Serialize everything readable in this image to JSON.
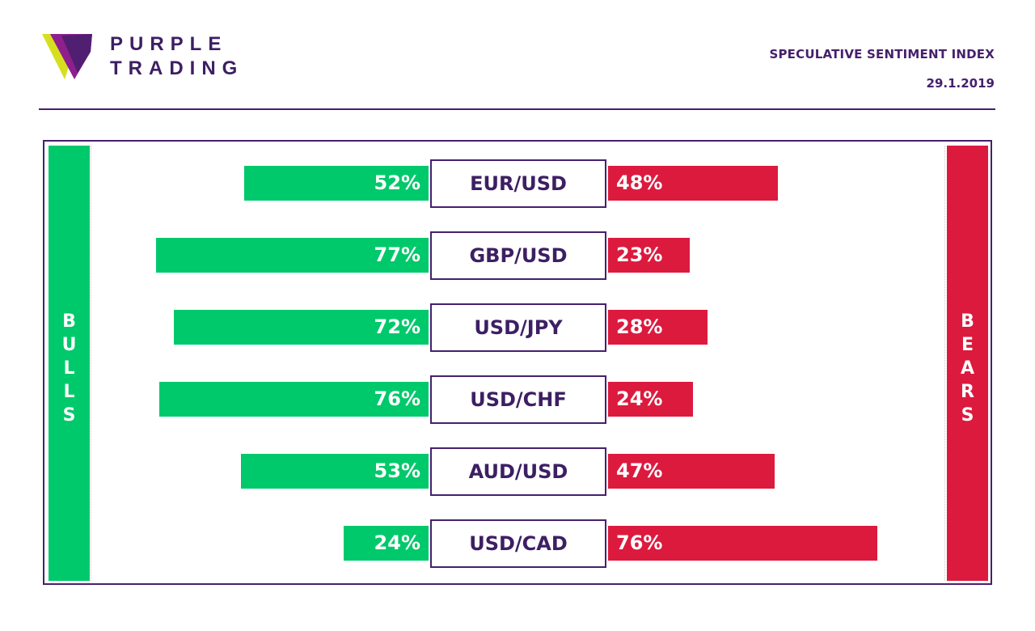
{
  "brand": {
    "line1": "PURPLE",
    "line2": "TRADING",
    "colors": {
      "purple": "#46206d",
      "yellow": "#d6df1f",
      "magenta": "#8e1f8c"
    }
  },
  "header": {
    "title": "SPECULATIVE SENTIMENT INDEX",
    "date": "29.1.2019"
  },
  "side_labels": {
    "bulls": "BULLS",
    "bears": "BEARS"
  },
  "colors": {
    "bull": "#00c96b",
    "bear": "#dc1a3e",
    "frame": "#46206d"
  },
  "chart_data": {
    "type": "bar",
    "orientation": "horizontal-diverging",
    "categories": [
      "EUR/USD",
      "GBP/USD",
      "USD/JPY",
      "USD/CHF",
      "AUD/USD",
      "USD/CAD"
    ],
    "series": [
      {
        "name": "BULLS",
        "values": [
          52,
          77,
          72,
          76,
          53,
          24
        ]
      },
      {
        "name": "BEARS",
        "values": [
          48,
          23,
          28,
          24,
          47,
          76
        ]
      }
    ],
    "value_labels": {
      "bulls": [
        "52%",
        "77%",
        "72%",
        "76%",
        "53%",
        "24%"
      ],
      "bears": [
        "48%",
        "23%",
        "28%",
        "24%",
        "47%",
        "76%"
      ]
    },
    "unit": "%",
    "xlim": [
      0,
      100
    ],
    "title": "SPECULATIVE SENTIMENT INDEX",
    "xlabel": "",
    "ylabel": "",
    "grid": false
  }
}
